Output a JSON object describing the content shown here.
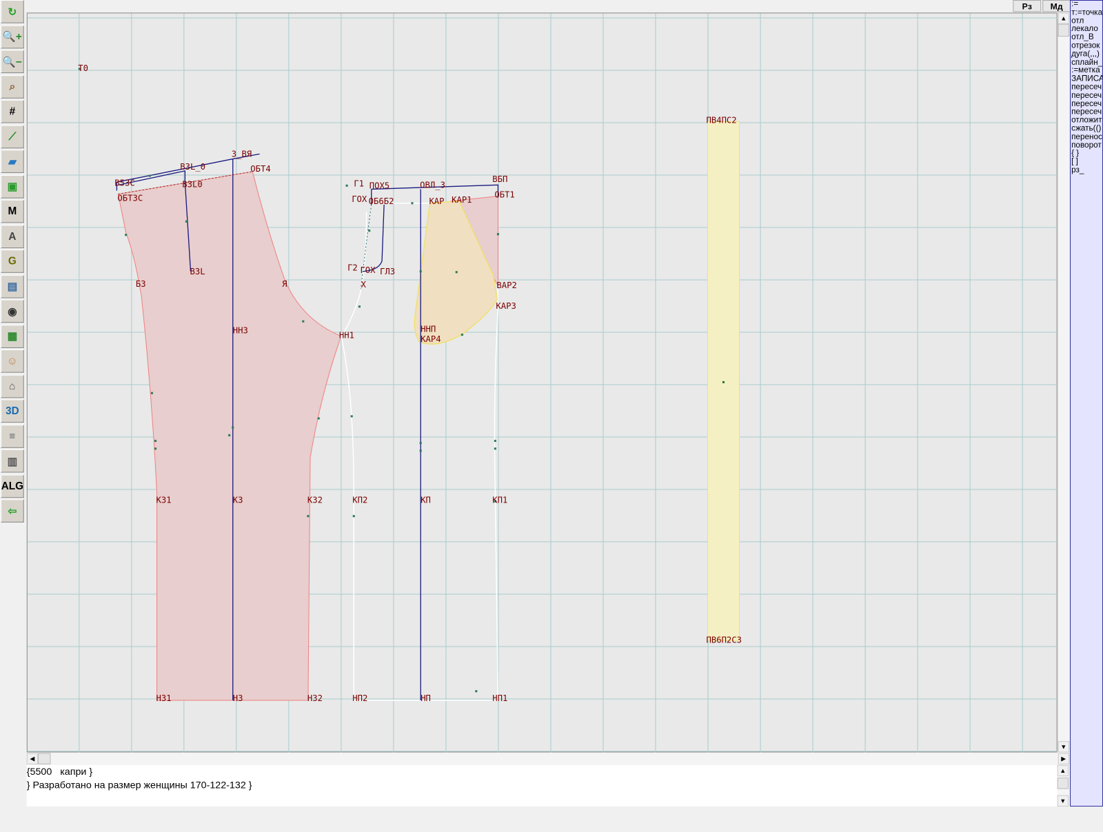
{
  "toolbar": {
    "items": [
      {
        "name": "refresh-icon",
        "glyph": "↻",
        "color": "#2aa02a"
      },
      {
        "name": "zoom-in-icon",
        "glyph": "🔍+",
        "color": "#2a8a2a"
      },
      {
        "name": "zoom-out-icon",
        "glyph": "🔍−",
        "color": "#2a8a2a"
      },
      {
        "name": "pattern-zoom-icon",
        "glyph": "⌕",
        "color": "#8a5a2a"
      },
      {
        "name": "grid-icon",
        "glyph": "#",
        "color": "#000000"
      },
      {
        "name": "line-segment-icon",
        "glyph": "⟋",
        "color": "#1a8a1a"
      },
      {
        "name": "map-icon",
        "glyph": "▰",
        "color": "#2a7ac0"
      },
      {
        "name": "pattern-piece-icon",
        "glyph": "▣",
        "color": "#2a9a2a"
      },
      {
        "name": "pattern-m-icon",
        "glyph": "M",
        "color": "#000000"
      },
      {
        "name": "compass-icon",
        "glyph": "A",
        "color": "#444444"
      },
      {
        "name": "pattern-g-icon",
        "glyph": "G",
        "color": "#6a6a00"
      },
      {
        "name": "measure-icon",
        "glyph": "▤",
        "color": "#3a6aa0"
      },
      {
        "name": "camera-icon",
        "glyph": "◉",
        "color": "#333333"
      },
      {
        "name": "table-icon",
        "glyph": "▦",
        "color": "#2a8a2a"
      },
      {
        "name": "woman-face-icon",
        "glyph": "☺",
        "color": "#c08040"
      },
      {
        "name": "jacket-icon",
        "glyph": "⌂",
        "color": "#555555"
      },
      {
        "name": "3d-icon",
        "glyph": "3D",
        "color": "#1a6ab0"
      },
      {
        "name": "document-icon",
        "glyph": "≡",
        "color": "#666666"
      },
      {
        "name": "books-icon",
        "glyph": "▥",
        "color": "#555555"
      },
      {
        "name": "alg-icon",
        "glyph": "ALG",
        "color": "#000000"
      },
      {
        "name": "exit-icon",
        "glyph": "⇦",
        "color": "#2aa02a"
      }
    ]
  },
  "topbar": {
    "rz_label": "Рз",
    "md_label": "Мд"
  },
  "commands": [
    ":=",
    "т:=точка",
    "отл",
    "лекало",
    "отл_В",
    "отрезок",
    "дуга(,,,)",
    "сплайн_",
    ":=метка",
    "ЗАПИСА",
    "пересеч",
    "пересеч",
    "пересеч",
    "пересеч",
    "отложит",
    "сжать(()",
    "перенос",
    "поворот",
    "{ }",
    "[ ]",
    "рз_"
  ],
  "description": {
    "line1": "{5500   капри }",
    "line2": "} Разработано на размер женщины 170-122-132 }"
  },
  "colors": {
    "back_fill": "#e8cece",
    "back_stroke": "#f08080",
    "pocket_fill": "#f0dfc0",
    "pocket_stroke": "#f0e060",
    "belt_fill": "#f5f0c4",
    "construction": "#1a1a80",
    "grid": "#a9cccc",
    "label": "#7a0000"
  },
  "labels": {
    "t0": "Т0",
    "z_vya": "3_ВЯ",
    "vzl_0": "ВЗL_0",
    "obt4": "ОБТ4",
    "v53s": "В53С",
    "vzl0": "ВЗL0",
    "obt3s": "ОБТ3С",
    "vzl": "ВЗL",
    "b3": "Б3",
    "ya": "Я",
    "nn3": "НН3",
    "nn1": "НН1",
    "k31": "К31",
    "k3": "К3",
    "k32": "К32",
    "kp2": "КП2",
    "kp": "КП",
    "kp1": "КП1",
    "n31": "Н31",
    "n3": "Н3",
    "n32": "Н32",
    "np2": "НП2",
    "np": "НП",
    "np1": "НП1",
    "g1": "Г1",
    "pox5": "ПОХ5",
    "ovl_3": "ОВЛ_3",
    "vbp": "ВБП",
    "obt1": "ОБТ1",
    "gox": "ГОХ",
    "ob6b2": "ОБ6Б2",
    "kar": "КАР",
    "kar1": "КАР1",
    "g2": "Г2",
    "gox2": "ГОХ",
    "gl3": "ГЛ3",
    "x": "Х",
    "var2": "ВАР2",
    "kar3": "КАР3",
    "nnp": "ННП",
    "kar4": "КАР4",
    "pv4ps2": "ПВ4ПС2",
    "pv6p2s3": "ПВ6П2С3"
  }
}
